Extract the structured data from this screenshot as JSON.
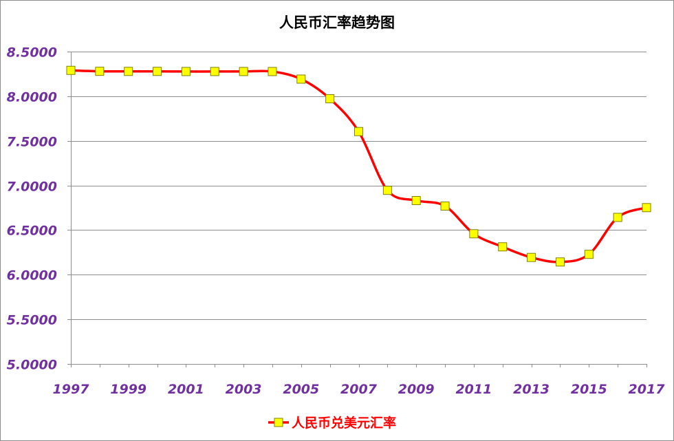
{
  "chart_data": {
    "type": "line",
    "title": "人民币汇率趋势图",
    "xlabel": "",
    "ylabel": "",
    "x": [
      1997,
      1998,
      1999,
      2000,
      2001,
      2002,
      2003,
      2004,
      2005,
      2006,
      2007,
      2008,
      2009,
      2010,
      2011,
      2012,
      2013,
      2014,
      2015,
      2016,
      2017
    ],
    "x_tick_labels": [
      "1997",
      "1999",
      "2001",
      "2003",
      "2005",
      "2007",
      "2009",
      "2011",
      "2013",
      "2015",
      "2017"
    ],
    "y_tick_labels": [
      "8.5000",
      "8.0000",
      "7.5000",
      "7.0000",
      "6.5000",
      "6.0000",
      "5.5000",
      "5.0000"
    ],
    "ylim": [
      5.0,
      8.5
    ],
    "grid": true,
    "legend_position": "bottom",
    "series": [
      {
        "name": "人民币兑美元汇率",
        "line_color": "#ff0000",
        "marker": "square",
        "marker_fill": "#ffff00",
        "marker_edge": "#808000",
        "smooth": true,
        "values": [
          8.2898,
          8.2791,
          8.2783,
          8.2784,
          8.277,
          8.277,
          8.277,
          8.2768,
          8.1917,
          7.9718,
          7.604,
          6.9451,
          6.831,
          6.7695,
          6.4588,
          6.3125,
          6.1932,
          6.1428,
          6.2284,
          6.6423,
          6.7518
        ]
      }
    ]
  }
}
